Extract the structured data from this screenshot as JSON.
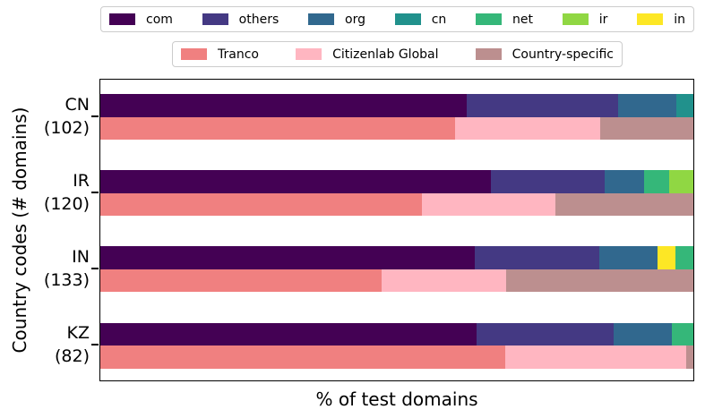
{
  "figure": {
    "xlabel": "% of test domains",
    "ylabel": "Country codes (# domains)"
  },
  "chart_data": {
    "type": "bar",
    "orientation": "horizontal",
    "stacked": true,
    "title": "",
    "xlabel": "% of test domains",
    "ylabel": "Country codes (# domains)",
    "xlim": [
      0,
      100
    ],
    "x_tick_labels_shown": false,
    "grid": false,
    "tld_colors": {
      "com": "#440154",
      "others": "#443983",
      "org": "#31688e",
      "cn": "#21918c",
      "net": "#35b779",
      "ir": "#90d743",
      "in": "#fde725"
    },
    "source_colors": {
      "Tranco": "#f08080",
      "Citizenlab Global": "#ffb6c1",
      "Country-specific": "#bc8f8f"
    },
    "legend_tld": {
      "position": "top-outside",
      "entries": [
        {
          "label": "com",
          "color": "#440154"
        },
        {
          "label": "others",
          "color": "#443983"
        },
        {
          "label": "org",
          "color": "#31688e"
        },
        {
          "label": "cn",
          "color": "#21918c"
        },
        {
          "label": "net",
          "color": "#35b779"
        },
        {
          "label": "ir",
          "color": "#90d743"
        },
        {
          "label": "in",
          "color": "#fde725"
        }
      ]
    },
    "legend_source": {
      "position": "top-outside-second-row",
      "entries": [
        {
          "label": "Tranco",
          "color": "#f08080"
        },
        {
          "label": "Citizenlab Global",
          "color": "#ffb6c1"
        },
        {
          "label": "Country-specific",
          "color": "#bc8f8f"
        }
      ]
    },
    "groups": [
      {
        "country": "CN",
        "domain_count": 102,
        "tick_label": [
          "CN",
          "(102)"
        ],
        "tld_bar": [
          {
            "label": "com",
            "pct": 61.8
          },
          {
            "label": "others",
            "pct": 25.5
          },
          {
            "label": "org",
            "pct": 9.8
          },
          {
            "label": "cn",
            "pct": 2.9
          }
        ],
        "source_bar": [
          {
            "label": "Tranco",
            "pct": 59.8
          },
          {
            "label": "Citizenlab Global",
            "pct": 24.5
          },
          {
            "label": "Country-specific",
            "pct": 15.7
          }
        ]
      },
      {
        "country": "IR",
        "domain_count": 120,
        "tick_label": [
          "IR",
          "(120)"
        ],
        "tld_bar": [
          {
            "label": "com",
            "pct": 65.8
          },
          {
            "label": "others",
            "pct": 19.2
          },
          {
            "label": "org",
            "pct": 6.7
          },
          {
            "label": "net",
            "pct": 4.2
          },
          {
            "label": "ir",
            "pct": 4.1
          }
        ],
        "source_bar": [
          {
            "label": "Tranco",
            "pct": 54.2
          },
          {
            "label": "Citizenlab Global",
            "pct": 22.5
          },
          {
            "label": "Country-specific",
            "pct": 23.3
          }
        ]
      },
      {
        "country": "IN",
        "domain_count": 133,
        "tick_label": [
          "IN",
          "(133)"
        ],
        "tld_bar": [
          {
            "label": "com",
            "pct": 63.2
          },
          {
            "label": "others",
            "pct": 21.0
          },
          {
            "label": "org",
            "pct": 9.8
          },
          {
            "label": "in",
            "pct": 3.0
          },
          {
            "label": "net",
            "pct": 3.0
          }
        ],
        "source_bar": [
          {
            "label": "Tranco",
            "pct": 47.4
          },
          {
            "label": "Citizenlab Global",
            "pct": 21.0
          },
          {
            "label": "Country-specific",
            "pct": 31.6
          }
        ]
      },
      {
        "country": "KZ",
        "domain_count": 82,
        "tick_label": [
          "KZ",
          "(82)"
        ],
        "tld_bar": [
          {
            "label": "com",
            "pct": 63.4
          },
          {
            "label": "others",
            "pct": 23.2
          },
          {
            "label": "org",
            "pct": 9.8
          },
          {
            "label": "net",
            "pct": 3.6
          }
        ],
        "source_bar": [
          {
            "label": "Tranco",
            "pct": 68.3
          },
          {
            "label": "Citizenlab Global",
            "pct": 30.5
          },
          {
            "label": "Country-specific",
            "pct": 1.2
          }
        ]
      }
    ]
  }
}
